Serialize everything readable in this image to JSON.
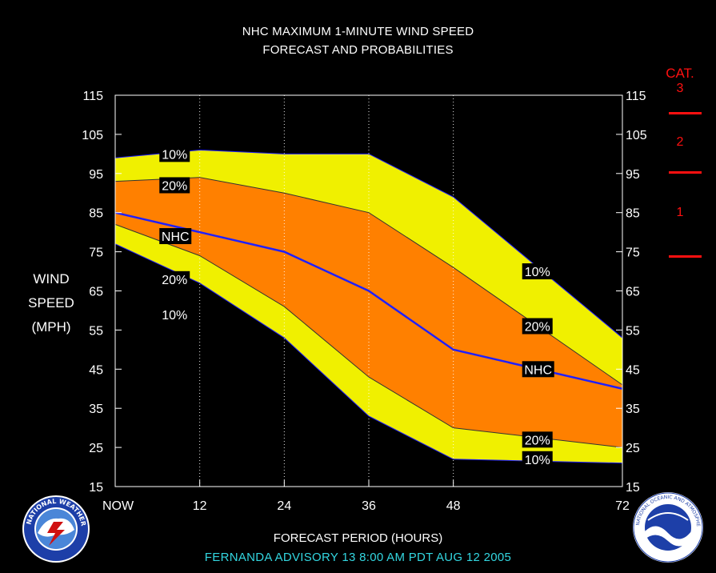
{
  "header": {
    "title_line1": "NHC MAXIMUM 1-MINUTE WIND SPEED",
    "title_line2": "FORECAST AND PROBABILITIES"
  },
  "axis": {
    "ylabel_line1": "WIND",
    "ylabel_line2": "SPEED",
    "ylabel_line3": "(MPH)",
    "xlabel": "FORECAST PERIOD (HOURS)"
  },
  "footer": {
    "advisory": "FERNANDA   ADVISORY  13 8:00  AM PDT AUG 12 2005"
  },
  "categories": {
    "title": "CAT.",
    "items": [
      {
        "label": "3",
        "min": 111
      },
      {
        "label": "2",
        "min": 96
      },
      {
        "label": "1",
        "min": 74
      }
    ]
  },
  "logos": {
    "left": "nws-logo",
    "right": "noaa-logo"
  },
  "colors": {
    "outer_band": "#f0f000",
    "inner_band": "#ff8000",
    "nhc_line": "#2020ff",
    "category": "#ff1010",
    "advisory_text": "#33d6e0"
  },
  "chart_data": {
    "type": "area",
    "x": [
      0,
      12,
      24,
      36,
      48,
      72
    ],
    "x_tick_labels": [
      "NOW",
      "12",
      "24",
      "36",
      "48",
      "72"
    ],
    "ylim": [
      15,
      115
    ],
    "y_ticks": [
      15,
      25,
      35,
      45,
      55,
      65,
      75,
      85,
      95,
      105,
      115
    ],
    "grid": "vertical dotted",
    "series": [
      {
        "name": "10%",
        "role": "upper",
        "values": [
          99,
          101,
          100,
          100,
          89,
          53
        ]
      },
      {
        "name": "20%",
        "role": "upper",
        "values": [
          93,
          94,
          90,
          85,
          71,
          41
        ]
      },
      {
        "name": "NHC",
        "role": "forecast",
        "values": [
          85,
          80,
          75,
          65,
          50,
          40
        ]
      },
      {
        "name": "20%",
        "role": "lower",
        "values": [
          82,
          74,
          61,
          43,
          30,
          25
        ]
      },
      {
        "name": "10%",
        "role": "lower",
        "values": [
          77,
          67,
          53,
          33,
          22,
          21
        ]
      }
    ],
    "labels": [
      {
        "text": "10%",
        "x": 6.5,
        "y": 100
      },
      {
        "text": "20%",
        "x": 6.5,
        "y": 92
      },
      {
        "text": "NHC",
        "x": 6.5,
        "y": 79
      },
      {
        "text": "20%",
        "x": 6.5,
        "y": 68
      },
      {
        "text": "10%",
        "x": 6.5,
        "y": 59
      },
      {
        "text": "10%",
        "x": 58,
        "y": 70
      },
      {
        "text": "20%",
        "x": 58,
        "y": 56
      },
      {
        "text": "NHC",
        "x": 58,
        "y": 45
      },
      {
        "text": "20%",
        "x": 58,
        "y": 27
      },
      {
        "text": "10%",
        "x": 58,
        "y": 22
      }
    ]
  }
}
